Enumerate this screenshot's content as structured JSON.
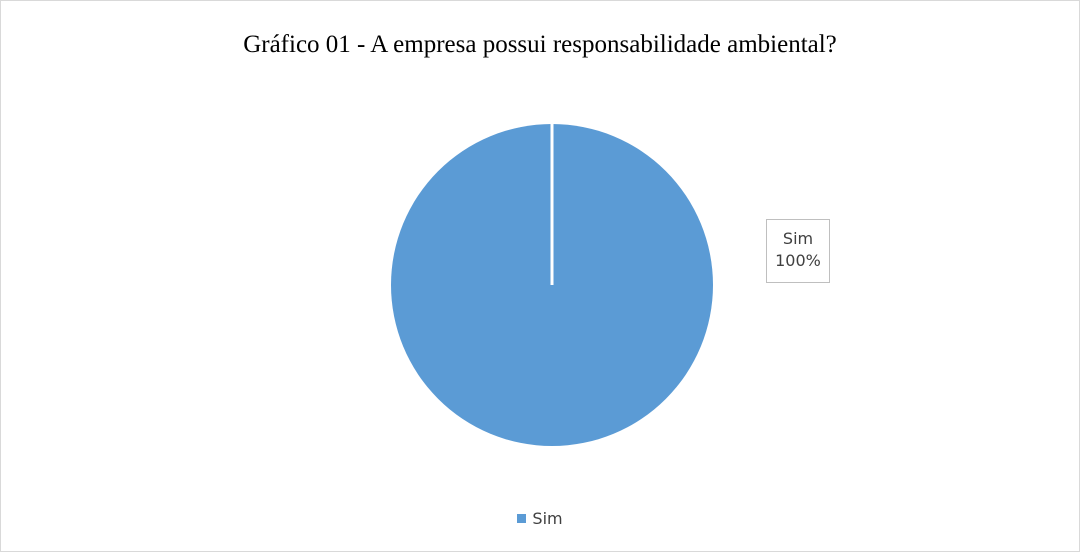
{
  "chart_data": {
    "type": "pie",
    "title": "Gráfico 01 - A empresa possui responsabilidade ambiental?",
    "categories": [
      "Sim"
    ],
    "values": [
      100
    ],
    "colors": [
      "#5b9bd5"
    ],
    "data_labels": [
      {
        "category": "Sim",
        "value": "100%"
      }
    ],
    "legend": {
      "entries": [
        "Sim"
      ],
      "position": "bottom"
    }
  }
}
